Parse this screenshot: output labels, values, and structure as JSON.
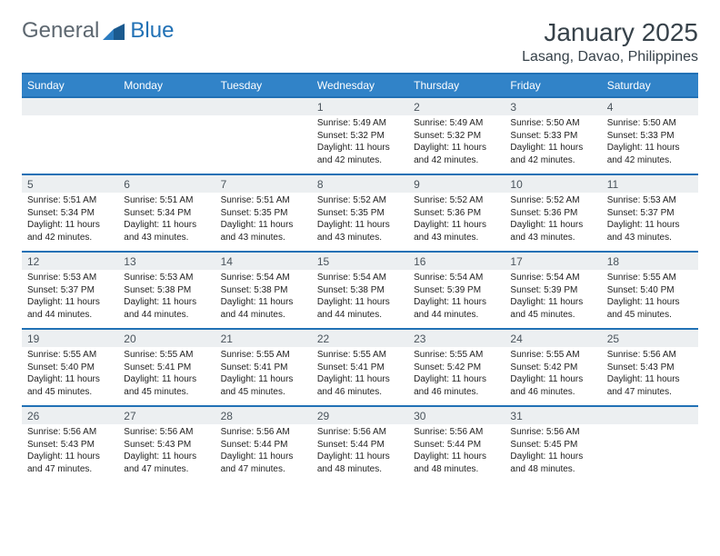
{
  "logo": {
    "text1": "General",
    "text2": "Blue"
  },
  "title": "January 2025",
  "location": "Lasang, Davao, Philippines",
  "day_headers": [
    "Sunday",
    "Monday",
    "Tuesday",
    "Wednesday",
    "Thursday",
    "Friday",
    "Saturday"
  ],
  "colors": {
    "header_bg": "#3183c8",
    "header_border": "#2171b5",
    "daynum_bg": "#eceff1",
    "text_dark": "#37424a"
  },
  "weeks": [
    {
      "nums": [
        "",
        "",
        "",
        "1",
        "2",
        "3",
        "4"
      ],
      "cells": [
        null,
        null,
        null,
        {
          "sunrise": "5:49 AM",
          "sunset": "5:32 PM",
          "dl": "11 hours and 42 minutes."
        },
        {
          "sunrise": "5:49 AM",
          "sunset": "5:32 PM",
          "dl": "11 hours and 42 minutes."
        },
        {
          "sunrise": "5:50 AM",
          "sunset": "5:33 PM",
          "dl": "11 hours and 42 minutes."
        },
        {
          "sunrise": "5:50 AM",
          "sunset": "5:33 PM",
          "dl": "11 hours and 42 minutes."
        }
      ]
    },
    {
      "nums": [
        "5",
        "6",
        "7",
        "8",
        "9",
        "10",
        "11"
      ],
      "cells": [
        {
          "sunrise": "5:51 AM",
          "sunset": "5:34 PM",
          "dl": "11 hours and 42 minutes."
        },
        {
          "sunrise": "5:51 AM",
          "sunset": "5:34 PM",
          "dl": "11 hours and 43 minutes."
        },
        {
          "sunrise": "5:51 AM",
          "sunset": "5:35 PM",
          "dl": "11 hours and 43 minutes."
        },
        {
          "sunrise": "5:52 AM",
          "sunset": "5:35 PM",
          "dl": "11 hours and 43 minutes."
        },
        {
          "sunrise": "5:52 AM",
          "sunset": "5:36 PM",
          "dl": "11 hours and 43 minutes."
        },
        {
          "sunrise": "5:52 AM",
          "sunset": "5:36 PM",
          "dl": "11 hours and 43 minutes."
        },
        {
          "sunrise": "5:53 AM",
          "sunset": "5:37 PM",
          "dl": "11 hours and 43 minutes."
        }
      ]
    },
    {
      "nums": [
        "12",
        "13",
        "14",
        "15",
        "16",
        "17",
        "18"
      ],
      "cells": [
        {
          "sunrise": "5:53 AM",
          "sunset": "5:37 PM",
          "dl": "11 hours and 44 minutes."
        },
        {
          "sunrise": "5:53 AM",
          "sunset": "5:38 PM",
          "dl": "11 hours and 44 minutes."
        },
        {
          "sunrise": "5:54 AM",
          "sunset": "5:38 PM",
          "dl": "11 hours and 44 minutes."
        },
        {
          "sunrise": "5:54 AM",
          "sunset": "5:38 PM",
          "dl": "11 hours and 44 minutes."
        },
        {
          "sunrise": "5:54 AM",
          "sunset": "5:39 PM",
          "dl": "11 hours and 44 minutes."
        },
        {
          "sunrise": "5:54 AM",
          "sunset": "5:39 PM",
          "dl": "11 hours and 45 minutes."
        },
        {
          "sunrise": "5:55 AM",
          "sunset": "5:40 PM",
          "dl": "11 hours and 45 minutes."
        }
      ]
    },
    {
      "nums": [
        "19",
        "20",
        "21",
        "22",
        "23",
        "24",
        "25"
      ],
      "cells": [
        {
          "sunrise": "5:55 AM",
          "sunset": "5:40 PM",
          "dl": "11 hours and 45 minutes."
        },
        {
          "sunrise": "5:55 AM",
          "sunset": "5:41 PM",
          "dl": "11 hours and 45 minutes."
        },
        {
          "sunrise": "5:55 AM",
          "sunset": "5:41 PM",
          "dl": "11 hours and 45 minutes."
        },
        {
          "sunrise": "5:55 AM",
          "sunset": "5:41 PM",
          "dl": "11 hours and 46 minutes."
        },
        {
          "sunrise": "5:55 AM",
          "sunset": "5:42 PM",
          "dl": "11 hours and 46 minutes."
        },
        {
          "sunrise": "5:55 AM",
          "sunset": "5:42 PM",
          "dl": "11 hours and 46 minutes."
        },
        {
          "sunrise": "5:56 AM",
          "sunset": "5:43 PM",
          "dl": "11 hours and 47 minutes."
        }
      ]
    },
    {
      "nums": [
        "26",
        "27",
        "28",
        "29",
        "30",
        "31",
        ""
      ],
      "cells": [
        {
          "sunrise": "5:56 AM",
          "sunset": "5:43 PM",
          "dl": "11 hours and 47 minutes."
        },
        {
          "sunrise": "5:56 AM",
          "sunset": "5:43 PM",
          "dl": "11 hours and 47 minutes."
        },
        {
          "sunrise": "5:56 AM",
          "sunset": "5:44 PM",
          "dl": "11 hours and 47 minutes."
        },
        {
          "sunrise": "5:56 AM",
          "sunset": "5:44 PM",
          "dl": "11 hours and 48 minutes."
        },
        {
          "sunrise": "5:56 AM",
          "sunset": "5:44 PM",
          "dl": "11 hours and 48 minutes."
        },
        {
          "sunrise": "5:56 AM",
          "sunset": "5:45 PM",
          "dl": "11 hours and 48 minutes."
        },
        null
      ]
    }
  ],
  "labels": {
    "sunrise": "Sunrise:",
    "sunset": "Sunset:",
    "daylight": "Daylight:"
  }
}
